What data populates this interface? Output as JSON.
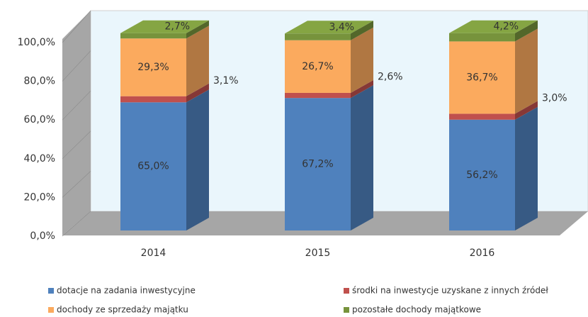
{
  "chart_data": {
    "type": "bar3d_stacked",
    "categories": [
      "2014",
      "2015",
      "2016"
    ],
    "series": [
      {
        "name": "dotacje na zadania inwestycyjne",
        "color": "#4f81bd",
        "values": [
          65.0,
          67.2,
          56.2
        ],
        "value_labels": [
          "65,0%",
          "67,2%",
          "56,2%"
        ]
      },
      {
        "name": "środki na inwestycje uzyskane z innych źródeł",
        "color": "#c0504d",
        "values": [
          3.1,
          2.6,
          3.0
        ],
        "value_labels": [
          "3,1%",
          "2,6%",
          "3,0%"
        ]
      },
      {
        "name": "dochody ze sprzedaży majątku",
        "color": "#fbaa5e",
        "values": [
          29.3,
          26.7,
          36.7
        ],
        "value_labels": [
          "29,3%",
          "26,7%",
          "36,7%"
        ]
      },
      {
        "name": "pozostałe dochody majątkowe",
        "color": "#77933c",
        "values": [
          2.7,
          3.4,
          4.2
        ],
        "value_labels": [
          "2,7%",
          "3,4%",
          "4,2%"
        ]
      }
    ],
    "ylim": [
      0,
      100
    ],
    "yticks": [
      {
        "value": 0,
        "label": "0,0%"
      },
      {
        "value": 20,
        "label": "20,0%"
      },
      {
        "value": 40,
        "label": "40,0%"
      },
      {
        "value": 60,
        "label": "60,0%"
      },
      {
        "value": 80,
        "label": "80,0%"
      },
      {
        "value": 100,
        "label": "100,0%"
      }
    ],
    "legend": "bottom"
  }
}
